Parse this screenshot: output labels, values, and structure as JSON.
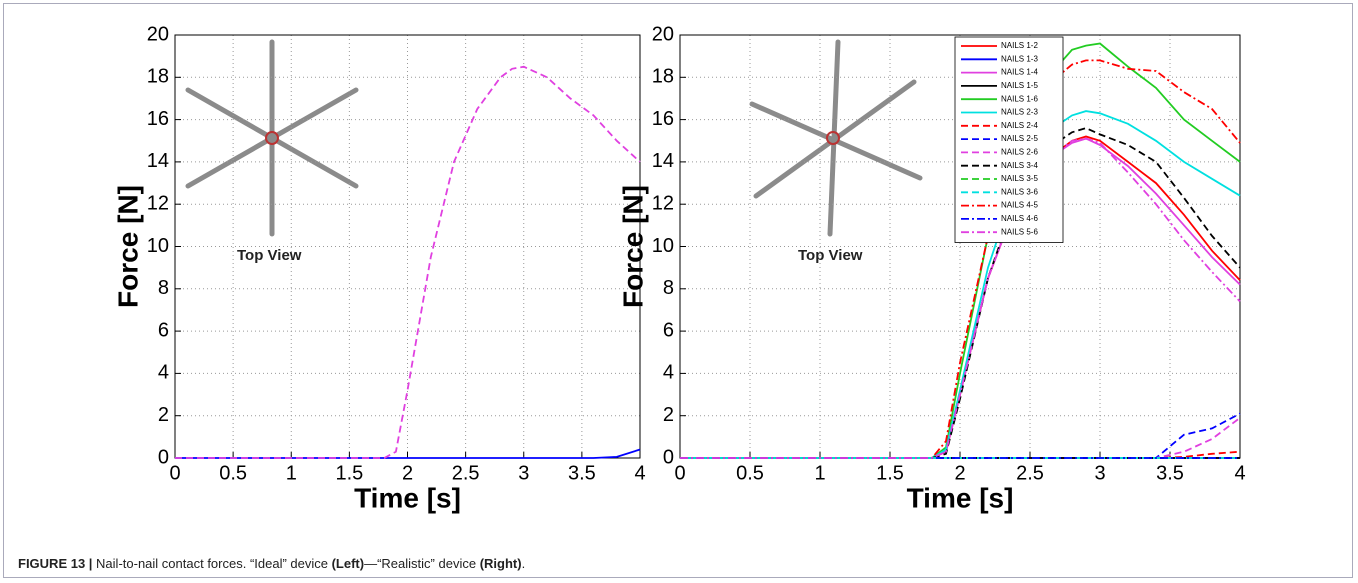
{
  "chart_data": [
    {
      "type": "line",
      "xlabel": "Time [s]",
      "ylabel": "Force [N]",
      "inset_label": "Top View",
      "x": [
        0,
        1.8,
        1.9,
        2.0,
        2.2,
        2.4,
        2.6,
        2.8,
        2.9,
        3.0,
        3.2,
        3.4,
        3.6,
        3.8,
        4.0
      ],
      "xlim": [
        0,
        4
      ],
      "ylim": [
        0,
        20
      ],
      "xticks": [
        0,
        0.5,
        1,
        1.5,
        2,
        2.5,
        3,
        3.5,
        4
      ],
      "yticks": [
        0,
        2,
        4,
        6,
        8,
        10,
        12,
        14,
        16,
        18,
        20
      ],
      "grid": true,
      "series": [
        {
          "color": "#0000ff",
          "dash": "solid",
          "values": [
            0,
            0,
            0,
            0,
            0,
            0,
            0,
            0,
            0,
            0,
            0,
            0,
            0,
            0.05,
            0.4
          ]
        },
        {
          "color": "#e040e0",
          "dash": "dashed",
          "values": [
            0,
            0,
            0.3,
            3.2,
            9.5,
            14,
            16.5,
            18,
            18.4,
            18.5,
            18,
            17,
            16.2,
            15,
            14
          ]
        }
      ]
    },
    {
      "type": "line",
      "xlabel": "Time [s]",
      "ylabel": "Force [N]",
      "inset_label": "Top View",
      "x": [
        0,
        1.8,
        1.9,
        2.0,
        2.2,
        2.4,
        2.6,
        2.8,
        2.9,
        3.0,
        3.2,
        3.4,
        3.6,
        3.8,
        4.0
      ],
      "xlim": [
        0,
        4
      ],
      "ylim": [
        0,
        20
      ],
      "xticks": [
        0,
        0.5,
        1,
        1.5,
        2,
        2.5,
        3,
        3.5,
        4
      ],
      "yticks": [
        0,
        2,
        4,
        6,
        8,
        10,
        12,
        14,
        16,
        18,
        20
      ],
      "grid": true,
      "legend": "upper-center",
      "series": [
        {
          "name": "NAILS 1-2",
          "color": "#ff0000",
          "dash": "solid",
          "values": [
            0,
            0,
            0.3,
            3,
            8.5,
            12,
            14,
            15,
            15.2,
            15,
            14,
            13,
            11.5,
            9.8,
            8.4
          ]
        },
        {
          "name": "NAILS 1-3",
          "color": "#0000ff",
          "dash": "solid",
          "values": [
            0,
            0,
            0,
            0,
            0,
            0,
            0,
            0,
            0,
            0,
            0,
            0,
            0,
            0,
            0
          ]
        },
        {
          "name": "NAILS 1-4",
          "color": "#e040e0",
          "dash": "solid",
          "values": [
            0,
            0,
            0.3,
            3,
            8.5,
            12,
            14,
            14.9,
            15.1,
            14.8,
            13.8,
            12.5,
            11,
            9.5,
            8.2
          ]
        },
        {
          "name": "NAILS 1-5",
          "color": "#000000",
          "dash": "solid",
          "values": [
            0,
            0,
            0,
            0,
            0,
            0,
            0,
            0,
            0,
            0,
            0,
            0,
            0,
            0,
            0
          ]
        },
        {
          "name": "NAILS 1-6",
          "color": "#22cc22",
          "dash": "solid",
          "values": [
            0,
            0,
            0.5,
            4,
            10.5,
            15,
            17.8,
            19.3,
            19.5,
            19.6,
            18.5,
            17.5,
            16,
            15,
            14
          ]
        },
        {
          "name": "NAILS 2-3",
          "color": "#00e0e0",
          "dash": "solid",
          "values": [
            0,
            0,
            0.4,
            3.2,
            9,
            13,
            15.3,
            16.2,
            16.4,
            16.3,
            15.8,
            15,
            14,
            13.2,
            12.4
          ]
        },
        {
          "name": "NAILS 2-4",
          "color": "#ff0000",
          "dash": "dashed",
          "values": [
            0,
            0,
            0,
            0,
            0,
            0,
            0,
            0,
            0,
            0,
            0,
            0,
            0.05,
            0.2,
            0.3
          ]
        },
        {
          "name": "NAILS 2-5",
          "color": "#0000ff",
          "dash": "dashed",
          "values": [
            0,
            0,
            0,
            0,
            0,
            0,
            0,
            0,
            0,
            0,
            0,
            0,
            1.1,
            1.4,
            2.1
          ]
        },
        {
          "name": "NAILS 2-6",
          "color": "#e040e0",
          "dash": "dashed",
          "values": [
            0,
            0,
            0,
            0,
            0,
            0,
            0,
            0,
            0,
            0,
            0,
            0,
            0.3,
            0.9,
            1.9
          ]
        },
        {
          "name": "NAILS 3-4",
          "color": "#000000",
          "dash": "dashed",
          "values": [
            0,
            0,
            0.2,
            2.8,
            8.5,
            12.3,
            14.5,
            15.4,
            15.6,
            15.3,
            14.8,
            14,
            12.3,
            10.5,
            9
          ]
        },
        {
          "name": "NAILS 3-5",
          "color": "#22cc22",
          "dash": "dashed",
          "values": [
            0,
            0,
            0,
            0,
            0,
            0,
            0,
            0,
            0,
            0,
            0,
            0,
            0,
            0,
            0
          ]
        },
        {
          "name": "NAILS 3-6",
          "color": "#00e0e0",
          "dash": "dashed",
          "values": [
            0,
            0,
            0,
            0,
            0,
            0,
            0,
            0,
            0,
            0,
            0,
            0,
            0,
            0,
            0
          ]
        },
        {
          "name": "NAILS 4-5",
          "color": "#ff0000",
          "dash": "dashdot",
          "values": [
            0,
            0,
            0.8,
            4.5,
            10.5,
            15,
            17.5,
            18.6,
            18.8,
            18.8,
            18.4,
            18.3,
            17.3,
            16.5,
            14.9
          ]
        },
        {
          "name": "NAILS 4-6",
          "color": "#0000ff",
          "dash": "dashdot",
          "values": [
            0,
            0,
            0,
            0,
            0,
            0,
            0,
            0,
            0,
            0,
            0,
            0,
            0,
            0,
            0
          ]
        },
        {
          "name": "NAILS 5-6",
          "color": "#e040e0",
          "dash": "dashdot",
          "values": [
            0,
            0,
            0.3,
            3,
            8.5,
            12,
            14,
            15,
            15.1,
            14.9,
            13.5,
            12,
            10.3,
            8.8,
            7.4
          ]
        }
      ]
    }
  ],
  "caption": {
    "parts": [
      {
        "text": "FIGURE 13 | ",
        "bold": true
      },
      {
        "text": "Nail-to-nail contact forces. “Ideal” device ",
        "bold": false
      },
      {
        "text": "(Left)",
        "bold": true
      },
      {
        "text": "—“Realistic” device ",
        "bold": false
      },
      {
        "text": "(Right)",
        "bold": true
      },
      {
        "text": ".",
        "bold": false
      }
    ]
  }
}
